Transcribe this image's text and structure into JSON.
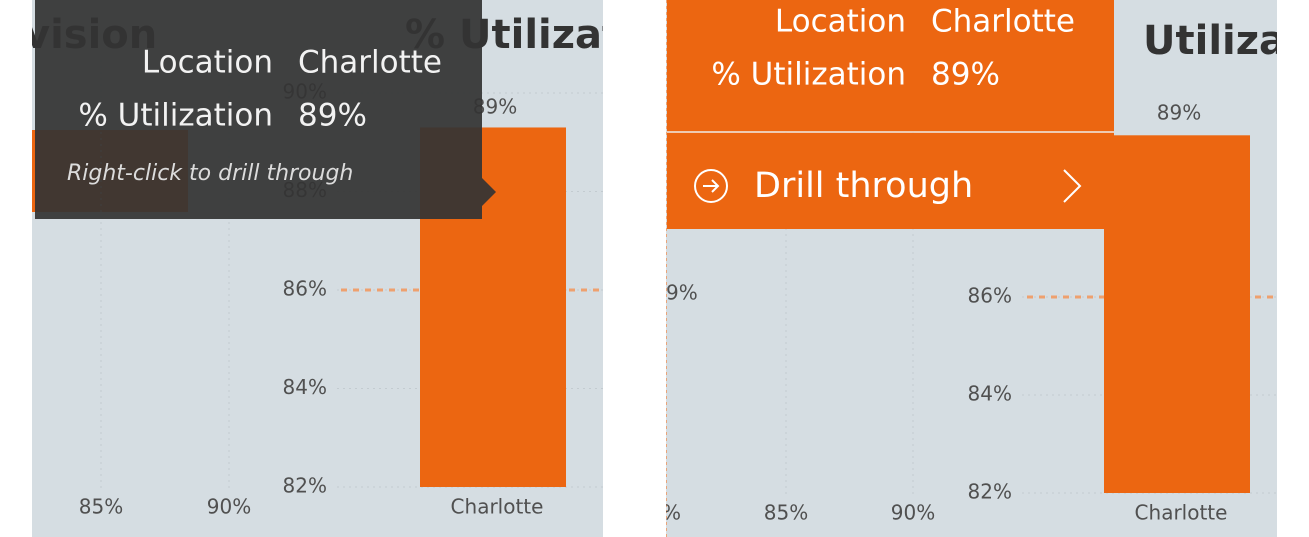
{
  "left_panel": {
    "title_fragment": "vision",
    "title": "% Utilizat",
    "x_axis_labels": [
      "85%",
      "90%"
    ],
    "chart": {
      "type": "bar",
      "categories": [
        "Charlotte"
      ],
      "values": [
        89.3
      ],
      "value_labels": [
        "89%"
      ],
      "color": "#ec6611",
      "ylim": [
        82,
        90
      ],
      "yticks": [
        {
          "value": 82,
          "label": "82%"
        },
        {
          "value": 84,
          "label": "84%"
        },
        {
          "value": 86,
          "label": "86%"
        },
        {
          "value": 88,
          "label": "88%"
        },
        {
          "value": 90,
          "label": "90%"
        }
      ],
      "reference_line": 86,
      "grid": true
    },
    "tooltip": {
      "rows": [
        {
          "label": "Location",
          "value": "Charlotte"
        },
        {
          "label": "% Utilization",
          "value": "89%"
        }
      ],
      "hint": "Right-click to drill through"
    }
  },
  "right_panel": {
    "title": "Utiliza",
    "fragments": [
      "9%",
      "%"
    ],
    "x_axis_labels": [
      "85%",
      "90%"
    ],
    "chart": {
      "type": "bar",
      "categories": [
        "Charlotte"
      ],
      "values": [
        89.3
      ],
      "value_labels": [
        "89%"
      ],
      "color": "#ec6611",
      "ylim": [
        82,
        90
      ],
      "yticks": [
        {
          "value": 82,
          "label": "82%"
        },
        {
          "value": 84,
          "label": "84%"
        },
        {
          "value": 86,
          "label": "86%"
        }
      ],
      "reference_line": 86,
      "grid": true
    },
    "tooltip": {
      "rows": [
        {
          "label": "Location",
          "value": "Charlotte"
        },
        {
          "label": "% Utilization",
          "value": "89%"
        }
      ],
      "action": "Drill through"
    }
  }
}
